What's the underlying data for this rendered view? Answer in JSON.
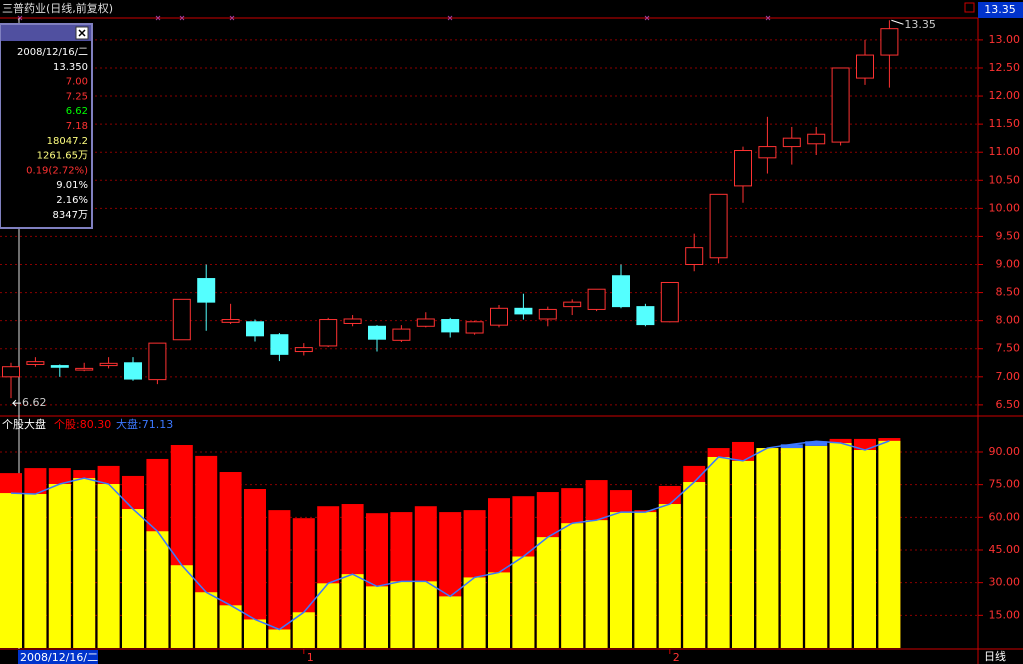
{
  "chart_data": [
    {
      "type": "candlestick",
      "title": "三普药业(日线,前复权)",
      "categories": [
        "2008/12/16/二",
        null,
        null,
        null,
        null,
        null,
        null,
        null,
        null,
        null,
        null,
        null,
        "1",
        null,
        null,
        null,
        null,
        null,
        null,
        null,
        null,
        null,
        null,
        null,
        null,
        null,
        null,
        "2",
        null,
        null,
        null,
        null,
        null,
        null,
        null,
        null,
        null
      ],
      "open": [
        7.0,
        7.22,
        7.2,
        7.12,
        7.2,
        7.25,
        6.95,
        7.66,
        8.75,
        7.97,
        7.98,
        7.75,
        7.45,
        7.55,
        7.95,
        7.9,
        7.65,
        7.9,
        8.02,
        7.78,
        7.92,
        8.22,
        8.03,
        8.25,
        8.2,
        8.8,
        8.25,
        7.98,
        9.0,
        9.12,
        10.4,
        10.9,
        11.1,
        11.15,
        11.18,
        12.32,
        12.73
      ],
      "high": [
        7.25,
        7.35,
        7.22,
        7.25,
        7.35,
        7.35,
        7.6,
        8.38,
        9.0,
        8.3,
        8.02,
        7.78,
        7.6,
        8.05,
        8.1,
        7.92,
        7.92,
        8.15,
        8.05,
        8.0,
        8.28,
        8.48,
        8.25,
        8.38,
        8.56,
        9.0,
        8.3,
        8.68,
        9.55,
        10.25,
        11.1,
        11.63,
        11.45,
        11.45,
        12.5,
        13.0,
        13.35
      ],
      "low": [
        6.62,
        7.18,
        7.0,
        7.1,
        7.15,
        6.93,
        6.87,
        7.66,
        7.82,
        7.94,
        7.63,
        7.28,
        7.38,
        7.53,
        7.9,
        7.45,
        7.62,
        7.88,
        7.7,
        7.75,
        7.88,
        8.02,
        7.9,
        8.1,
        8.17,
        8.22,
        7.9,
        7.97,
        8.88,
        9.02,
        10.1,
        10.62,
        10.78,
        10.95,
        11.12,
        12.2,
        12.15
      ],
      "close": [
        7.18,
        7.27,
        7.17,
        7.15,
        7.24,
        6.96,
        7.6,
        8.38,
        8.33,
        8.02,
        7.73,
        7.4,
        7.52,
        8.02,
        8.03,
        7.67,
        7.85,
        8.03,
        7.8,
        7.98,
        8.22,
        8.12,
        8.2,
        8.33,
        8.56,
        8.25,
        7.93,
        8.68,
        9.3,
        10.25,
        11.03,
        11.1,
        11.25,
        11.32,
        12.5,
        12.73,
        13.2
      ],
      "up_color": "#ff3232",
      "down_color": "#54ffff",
      "ylim": [
        6.32,
        13.39
      ],
      "yticks": [
        {
          "value": 6.5,
          "label": "6.50"
        },
        {
          "value": 7,
          "label": "7.00"
        },
        {
          "value": 7.5,
          "label": "7.50"
        },
        {
          "value": 8,
          "label": "8.00"
        },
        {
          "value": 8.5,
          "label": "8.50"
        },
        {
          "value": 9,
          "label": "9.00"
        },
        {
          "value": 9.5,
          "label": "9.50"
        },
        {
          "value": 10,
          "label": "10.00"
        },
        {
          "value": 10.5,
          "label": "10.50"
        },
        {
          "value": 11,
          "label": "11.00"
        },
        {
          "value": 11.5,
          "label": "11.50"
        },
        {
          "value": 12,
          "label": "12.00"
        },
        {
          "value": 12.5,
          "label": "12.50"
        },
        {
          "value": 13,
          "label": "13.00"
        }
      ],
      "grid": true,
      "max_label": 13.35,
      "min_label": 6.62,
      "last_price": 13.35,
      "period_label": "日线"
    },
    {
      "type": "bar",
      "title": "个股大盘",
      "series": [
        {
          "name": "个股:80.30",
          "color": "#ff0000",
          "values": [
            80.3,
            82.6,
            82.6,
            81.7,
            83.6,
            79.0,
            86.8,
            93.2,
            88.2,
            80.8,
            73.0,
            63.3,
            59.6,
            65.1,
            66.1,
            61.9,
            62.4,
            65.1,
            62.4,
            63.3,
            68.8,
            69.7,
            71.6,
            73.4,
            77.1,
            72.5,
            63.3,
            74.4,
            83.6,
            91.8,
            94.6,
            91.8,
            91.8,
            92.8,
            96.0,
            96.0,
            96.4
          ]
        },
        {
          "name": "大盘:71.13",
          "color": "#3c78ff",
          "values": [
            71.13,
            70.7,
            75.3,
            78.0,
            75.3,
            63.8,
            53.6,
            38.0,
            25.6,
            19.6,
            13.1,
            8.5,
            16.4,
            29.7,
            33.9,
            28.3,
            30.6,
            30.6,
            23.7,
            32.4,
            34.7,
            42.0,
            50.9,
            57.3,
            58.7,
            62.4,
            62.4,
            66.1,
            76.2,
            87.7,
            85.9,
            91.8,
            93.5,
            94.9,
            94.1,
            90.9,
            95.1
          ]
        }
      ],
      "fill_color": "#ffff00",
      "ylim": [
        0,
        105.6
      ],
      "yticks": [
        {
          "value": 15,
          "label": "15.00"
        },
        {
          "value": 30,
          "label": "30.00"
        },
        {
          "value": 45,
          "label": "45.00"
        },
        {
          "value": 60,
          "label": "60.00"
        },
        {
          "value": 75,
          "label": "75.00"
        },
        {
          "value": 90,
          "label": "90.00"
        }
      ],
      "grid": true
    }
  ],
  "info_panel": {
    "rows": [
      {
        "text": "2008/12/16/二",
        "color": "#ffffff"
      },
      {
        "text": "13.350",
        "color": "#ffffff"
      },
      {
        "text": "7.00",
        "color": "#ff3232"
      },
      {
        "text": "7.25",
        "color": "#ff3232"
      },
      {
        "text": "6.62",
        "color": "#00ff00"
      },
      {
        "text": "7.18",
        "color": "#ff3232"
      },
      {
        "text": "18047.2",
        "color": "#ffff80"
      },
      {
        "text": "1261.65万",
        "color": "#ffff80"
      },
      {
        "text": "0.19(2.72%)",
        "color": "#ff3232"
      },
      {
        "text": "9.01%",
        "color": "#ffffff"
      },
      {
        "text": "2.16%",
        "color": "#ffffff"
      },
      {
        "text": "8347万",
        "color": "#ffffff"
      }
    ]
  }
}
